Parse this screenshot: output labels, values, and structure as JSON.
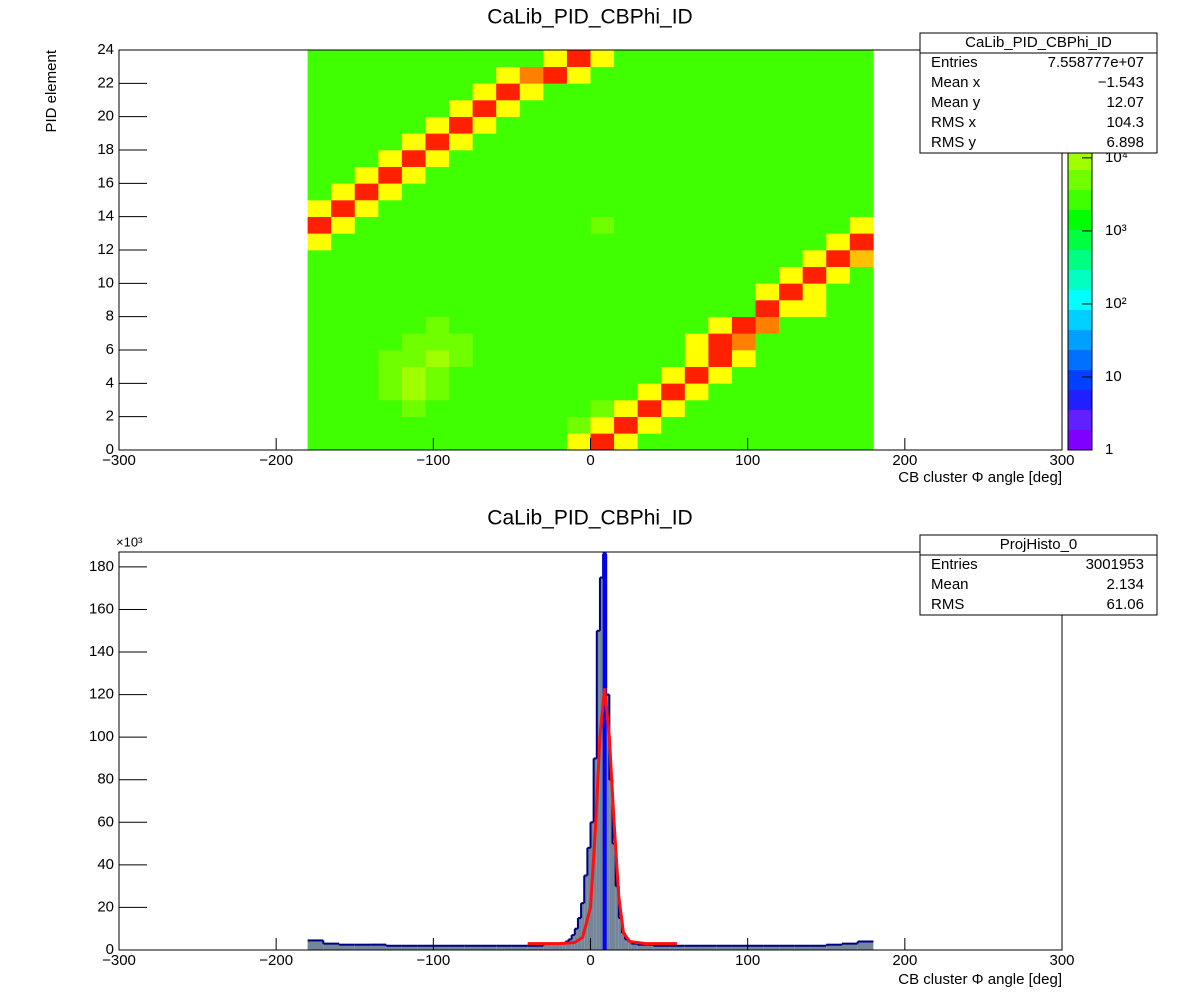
{
  "chart_data": [
    {
      "type": "heatmap",
      "title": "CaLib_PID_CBPhi_ID",
      "xlabel": "CB cluster Φ angle [deg]",
      "ylabel": "PID element",
      "xlim": [
        -300,
        300
      ],
      "xticks": [
        {
          "value": -300,
          "label": "−300"
        },
        {
          "value": -200,
          "label": "−200"
        },
        {
          "value": -100,
          "label": "−100"
        },
        0,
        100,
        200,
        300
      ],
      "ylim": [
        0,
        24
      ],
      "yticks": [
        0,
        2,
        4,
        6,
        8,
        10,
        12,
        14,
        16,
        18,
        20,
        22,
        24
      ],
      "zlim": [
        1,
        300000
      ],
      "zlog": true,
      "zticks": [
        1,
        10,
        {
          "value": 100,
          "label": "10²"
        },
        {
          "value": 1000,
          "label": "10³"
        },
        {
          "value": 10000,
          "label": "10⁴"
        }
      ],
      "palette": [
        "#8000ff",
        "#6020ff",
        "#2020ff",
        "#0040ff",
        "#0070ff",
        "#00a0ff",
        "#00d0ff",
        "#00ffff",
        "#00ffc0",
        "#00ff80",
        "#00ff40",
        "#00ff00",
        "#40ff00",
        "#70ff00",
        "#a0ff00",
        "#d0ff00",
        "#ffff00",
        "#ffc000",
        "#ff8000",
        "#ff2000"
      ],
      "xbins": [
        -180,
        -165,
        -150,
        -135,
        -120,
        -105,
        -90,
        -75,
        -60,
        -45,
        -30,
        -15,
        0,
        15,
        30,
        45,
        60,
        75,
        90,
        105,
        120,
        135,
        150,
        165,
        180
      ],
      "ybins": [
        0,
        1,
        2,
        3,
        4,
        5,
        6,
        7,
        8,
        9,
        10,
        11,
        12,
        13,
        14,
        15,
        16,
        17,
        18,
        19,
        20,
        21,
        22,
        23,
        24
      ],
      "z": [
        [
          3000,
          2500,
          2500,
          3000,
          2500,
          2000,
          2000,
          2500,
          2000,
          2500,
          3000,
          40000,
          200000,
          40000,
          2500,
          2000,
          2000,
          2500,
          2500,
          2000,
          2500,
          3000,
          2500,
          3000
        ],
        [
          3000,
          2500,
          2500,
          3000,
          3000,
          2000,
          2000,
          2500,
          2000,
          2500,
          3000,
          4000,
          40000,
          200000,
          40000,
          2000,
          2000,
          2500,
          2500,
          2000,
          2500,
          3000,
          2500,
          3000
        ],
        [
          3000,
          2500,
          3000,
          3000,
          4000,
          2500,
          2000,
          2500,
          2000,
          2500,
          3000,
          3000,
          4000,
          40000,
          200000,
          40000,
          2000,
          2500,
          2500,
          2000,
          2500,
          3000,
          2500,
          3000
        ],
        [
          3000,
          3000,
          3000,
          5000,
          8000,
          4000,
          2500,
          2500,
          2000,
          2500,
          3000,
          3000,
          3000,
          3000,
          40000,
          200000,
          40000,
          2500,
          2500,
          2000,
          2500,
          3000,
          2500,
          3000
        ],
        [
          3000,
          3000,
          3000,
          5000,
          8000,
          5000,
          3000,
          2500,
          2000,
          2500,
          2500,
          2500,
          3000,
          3000,
          3000,
          40000,
          200000,
          40000,
          2500,
          2000,
          2500,
          3000,
          2500,
          3000
        ],
        [
          3000,
          3000,
          3000,
          4000,
          6000,
          8000,
          4000,
          2500,
          2000,
          2500,
          2500,
          2500,
          3000,
          3000,
          3000,
          3000,
          40000,
          200000,
          40000,
          2000,
          2500,
          3000,
          2500,
          3000
        ],
        [
          3000,
          2500,
          3000,
          3000,
          4000,
          6000,
          4000,
          2500,
          2000,
          2000,
          2500,
          2500,
          3000,
          2500,
          2500,
          2500,
          40000,
          200000,
          100000,
          2500,
          2500,
          3000,
          2500,
          3000
        ],
        [
          3000,
          2500,
          2500,
          3000,
          3000,
          4000,
          3000,
          2500,
          2000,
          2000,
          2500,
          2500,
          3000,
          2500,
          2500,
          2500,
          2500,
          40000,
          200000,
          100000,
          2500,
          3000,
          2500,
          3000
        ],
        [
          3000,
          2500,
          2500,
          3000,
          3000,
          3000,
          3000,
          2500,
          2000,
          2000,
          2500,
          2500,
          3000,
          2500,
          2000,
          2000,
          2000,
          2500,
          2500,
          200000,
          40000,
          40000,
          2500,
          3000
        ],
        [
          3000,
          2500,
          2500,
          3000,
          2500,
          2500,
          2500,
          2500,
          2000,
          2000,
          2500,
          2500,
          3000,
          2500,
          2000,
          2000,
          2000,
          2000,
          2500,
          40000,
          200000,
          40000,
          3000,
          3000
        ],
        [
          3000,
          2500,
          2500,
          3000,
          2500,
          2500,
          2500,
          2500,
          2000,
          2000,
          2500,
          2500,
          3000,
          2500,
          2000,
          2000,
          2000,
          2000,
          2500,
          2500,
          40000,
          200000,
          40000,
          3000
        ],
        [
          3000,
          2500,
          2500,
          3000,
          2500,
          2500,
          2500,
          2500,
          2000,
          2000,
          2500,
          3000,
          3000,
          2500,
          2000,
          2000,
          2000,
          2000,
          2500,
          2500,
          3000,
          40000,
          200000,
          60000
        ],
        [
          40000,
          3000,
          2500,
          3000,
          2500,
          2500,
          2500,
          2500,
          2000,
          2000,
          2500,
          3000,
          3000,
          2500,
          2000,
          2000,
          2000,
          2000,
          2500,
          2500,
          3000,
          3000,
          40000,
          200000
        ],
        [
          200000,
          40000,
          3000,
          3000,
          2500,
          2500,
          2500,
          2500,
          2000,
          2000,
          2500,
          3000,
          5000,
          2500,
          2000,
          2000,
          2000,
          2000,
          2500,
          2500,
          3000,
          3000,
          3000,
          40000
        ],
        [
          40000,
          200000,
          40000,
          3000,
          2500,
          2500,
          2500,
          2500,
          2000,
          2000,
          2500,
          3000,
          3000,
          2500,
          2000,
          2000,
          2000,
          2000,
          2500,
          2500,
          2500,
          3000,
          3000,
          3000
        ],
        [
          3000,
          40000,
          200000,
          40000,
          2500,
          2500,
          2500,
          2500,
          2000,
          2000,
          2500,
          3000,
          3000,
          2500,
          2000,
          2000,
          2000,
          2000,
          2500,
          2500,
          2500,
          3000,
          3000,
          3000
        ],
        [
          3000,
          3000,
          40000,
          200000,
          40000,
          2500,
          2500,
          2500,
          2000,
          2000,
          2500,
          3000,
          3000,
          2500,
          2000,
          2000,
          2000,
          2000,
          2500,
          2500,
          2500,
          3000,
          3000,
          3000
        ],
        [
          3000,
          3000,
          3000,
          40000,
          200000,
          40000,
          2500,
          2500,
          2000,
          2000,
          2500,
          3000,
          3000,
          2500,
          2000,
          2000,
          2000,
          2000,
          2500,
          2500,
          2500,
          3000,
          3000,
          3000
        ],
        [
          3000,
          3000,
          3000,
          3000,
          40000,
          200000,
          40000,
          2500,
          2000,
          2000,
          2500,
          3000,
          3000,
          2500,
          2000,
          2000,
          2000,
          2000,
          2500,
          2500,
          2500,
          3000,
          3000,
          3000
        ],
        [
          3000,
          3000,
          3000,
          3000,
          3000,
          40000,
          200000,
          40000,
          2000,
          2000,
          2500,
          3000,
          3000,
          2500,
          2000,
          2000,
          2000,
          2000,
          2500,
          2500,
          2500,
          3000,
          3000,
          3000
        ],
        [
          3000,
          3000,
          3000,
          3000,
          3000,
          3000,
          40000,
          200000,
          40000,
          2000,
          2500,
          3000,
          3000,
          2500,
          2000,
          2000,
          2000,
          2000,
          2500,
          2500,
          2500,
          3000,
          3000,
          3000
        ],
        [
          3000,
          3000,
          3000,
          3000,
          3000,
          3000,
          3000,
          40000,
          200000,
          40000,
          2500,
          3000,
          3000,
          2500,
          2000,
          2000,
          2000,
          2000,
          2500,
          2500,
          2500,
          3000,
          3000,
          3000
        ],
        [
          3000,
          3000,
          3000,
          3000,
          3000,
          3000,
          3000,
          3000,
          40000,
          100000,
          200000,
          40000,
          3000,
          2500,
          2000,
          2000,
          2000,
          2000,
          2500,
          2500,
          2500,
          3000,
          3000,
          3000
        ],
        [
          3000,
          3000,
          3000,
          3000,
          3000,
          3000,
          3000,
          3000,
          3000,
          3000,
          40000,
          200000,
          40000,
          2500,
          2000,
          2000,
          2000,
          2000,
          2500,
          2500,
          2500,
          3000,
          3000,
          3000
        ]
      ],
      "stats": {
        "title": "CaLib_PID_CBPhi_ID",
        "rows": [
          [
            "Entries",
            "7.558777e+07"
          ],
          [
            "Mean x",
            "−1.543"
          ],
          [
            "Mean y",
            "12.07"
          ],
          [
            "RMS x",
            "104.3"
          ],
          [
            "RMS y",
            "6.898"
          ]
        ]
      }
    },
    {
      "type": "histogram",
      "title": "CaLib_PID_CBPhi_ID",
      "xlabel": "CB cluster Φ angle [deg]",
      "y_multiplier": "×10³",
      "xlim": [
        -300,
        300
      ],
      "xticks": [
        {
          "value": -300,
          "label": "−300"
        },
        {
          "value": -200,
          "label": "−200"
        },
        {
          "value": -100,
          "label": "−100"
        },
        0,
        100,
        200,
        300
      ],
      "ylim": [
        0,
        187
      ],
      "yticks": [
        0,
        20,
        40,
        60,
        80,
        100,
        120,
        140,
        160,
        180
      ],
      "color": "#74879a",
      "line_color": "#000080",
      "bins": [
        -180,
        -170,
        -160,
        -150,
        -140,
        -130,
        -120,
        -110,
        -100,
        -90,
        -80,
        -70,
        -60,
        -50,
        -40,
        -30,
        -20,
        -18,
        -16,
        -14,
        -12,
        -10,
        -8,
        -6,
        -4,
        -2,
        0,
        2,
        4,
        6,
        8,
        10,
        12,
        14,
        16,
        18,
        20,
        22,
        24,
        26,
        28,
        30,
        40,
        50,
        60,
        70,
        80,
        90,
        100,
        110,
        120,
        130,
        140,
        150,
        160,
        170,
        180
      ],
      "values": [
        4.5,
        3,
        2.5,
        2.5,
        2.5,
        2,
        2,
        2,
        2,
        2,
        2,
        2,
        2,
        2,
        2,
        3,
        3,
        3,
        4,
        5,
        7,
        10,
        15,
        22,
        35,
        48,
        60,
        90,
        150,
        175,
        186,
        120,
        80,
        50,
        30,
        15,
        8,
        5,
        4,
        3,
        3,
        2.5,
        2,
        2,
        2,
        2,
        2,
        2,
        2,
        2,
        2,
        2,
        2,
        2.5,
        3,
        4
      ],
      "fit": {
        "color": "#ff1010",
        "x": [
          -40,
          -20,
          -10,
          -5,
          0,
          3,
          6,
          9,
          12,
          15,
          18,
          21,
          25,
          35,
          55
        ],
        "values": [
          3,
          3,
          3.5,
          6,
          20,
          55,
          100,
          123,
          100,
          60,
          25,
          8,
          4,
          3,
          3
        ]
      },
      "marker_lines": [
        {
          "x": 9,
          "color": "#0000ff"
        }
      ],
      "stats": {
        "title": "ProjHisto_0",
        "rows": [
          [
            "Entries",
            "3001953"
          ],
          [
            "Mean",
            "2.134"
          ],
          [
            "RMS",
            "61.06"
          ]
        ]
      }
    }
  ]
}
